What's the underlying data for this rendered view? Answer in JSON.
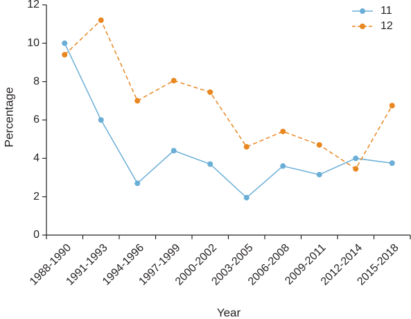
{
  "chart_data": {
    "type": "line",
    "title": "",
    "xlabel": "Year",
    "ylabel": "Percentage",
    "ylim": [
      0,
      12
    ],
    "yticks": [
      0,
      2,
      4,
      6,
      8,
      10,
      12
    ],
    "grid": false,
    "legend_position": "top-right",
    "categories": [
      "1988-1990",
      "1991-1993",
      "1994-1996",
      "1997-1999",
      "2000-2002",
      "2003-2005",
      "2006-2008",
      "2009-2011",
      "2012-2014",
      "2015-2018"
    ],
    "series": [
      {
        "name": "11",
        "color": "#6aaed6",
        "line_style": "solid",
        "values": [
          10.0,
          6.0,
          2.7,
          4.4,
          3.7,
          1.95,
          3.6,
          3.15,
          4.0,
          3.75
        ]
      },
      {
        "name": "12",
        "color": "#e8861f",
        "line_style": "dashed",
        "values": [
          9.4,
          11.2,
          7.0,
          8.05,
          7.45,
          4.6,
          5.4,
          4.7,
          3.45,
          6.75
        ]
      }
    ]
  }
}
